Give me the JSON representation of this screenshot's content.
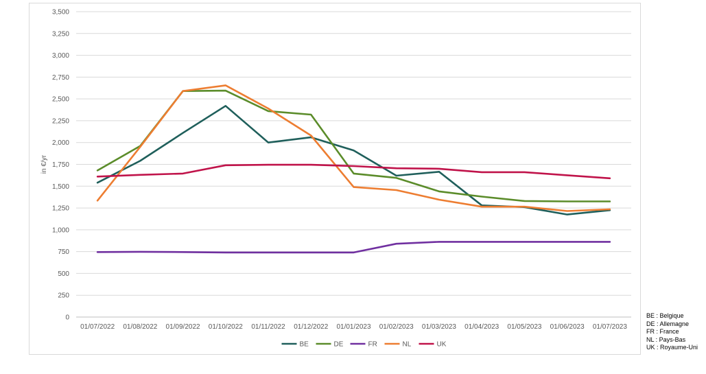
{
  "chart_data": {
    "type": "line",
    "title": "",
    "xlabel": "",
    "ylabel": "in €/yr",
    "ylim": [
      0,
      3500
    ],
    "yticks": [
      "0",
      "250",
      "500",
      "750",
      "1,000",
      "1,250",
      "1,500",
      "1,750",
      "2,000",
      "2,250",
      "2,500",
      "2,750",
      "3,000",
      "3,250",
      "3,500"
    ],
    "grid": true,
    "legend_position": "bottom",
    "categories": [
      "01/07/2022",
      "01/08/2022",
      "01/09/2022",
      "01/10/2022",
      "01/11/2022",
      "01/12/2022",
      "01/01/2023",
      "01/02/2023",
      "01/03/2023",
      "01/04/2023",
      "01/05/2023",
      "01/06/2023",
      "01/07/2023"
    ],
    "series": [
      {
        "name": "BE",
        "color": "#1f5f5b",
        "values": [
          1540,
          1790,
          2110,
          2420,
          2000,
          2060,
          1910,
          1620,
          1665,
          1280,
          1260,
          1175,
          1225
        ]
      },
      {
        "name": "DE",
        "color": "#5b8c2a",
        "values": [
          1680,
          1960,
          2590,
          2595,
          2360,
          2320,
          1645,
          1595,
          1440,
          1380,
          1330,
          1325,
          1325
        ]
      },
      {
        "name": "FR",
        "color": "#7030a0",
        "values": [
          745,
          748,
          745,
          740,
          740,
          740,
          740,
          840,
          862,
          862,
          862,
          862,
          862
        ]
      },
      {
        "name": "NL",
        "color": "#ed7d31",
        "values": [
          1335,
          1950,
          2590,
          2655,
          2390,
          2080,
          1490,
          1455,
          1345,
          1265,
          1265,
          1215,
          1235
        ]
      },
      {
        "name": "UK",
        "color": "#c0134a",
        "values": [
          1610,
          1630,
          1645,
          1740,
          1745,
          1745,
          1730,
          1705,
          1700,
          1660,
          1660,
          1625,
          1590
        ]
      }
    ]
  },
  "abbreviations": [
    "BE : Belgique",
    "DE : Allemagne",
    "FR : France",
    "NL : Pays-Bas",
    "UK : Royaume-Uni"
  ]
}
